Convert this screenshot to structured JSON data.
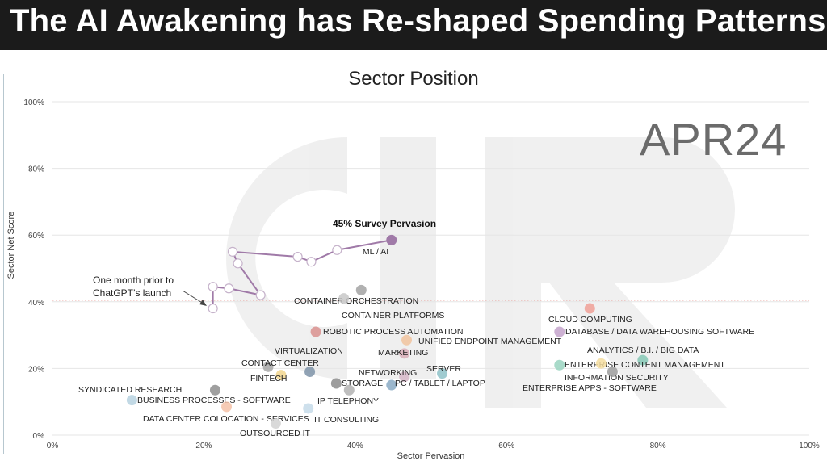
{
  "banner": {
    "title": "The AI Awakening has Re-shaped Spending Patterns"
  },
  "chart_data": {
    "type": "scatter",
    "title": "Sector Position",
    "watermark": "APR24",
    "xlabel": "Sector Pervasion",
    "ylabel": "Sector Net Score",
    "xlim": [
      0,
      100
    ],
    "ylim": [
      0,
      100
    ],
    "x_ticks": [
      "0%",
      "20%",
      "40%",
      "60%",
      "80%",
      "100%"
    ],
    "y_ticks": [
      "0%",
      "20%",
      "40%",
      "60%",
      "80%",
      "100%"
    ],
    "grid": true,
    "reference_line_y": 40.5,
    "points": [
      {
        "label": "ML / AI",
        "x": 44.8,
        "y": 58.5,
        "color": "#a07aa8"
      },
      {
        "label": "CONTAINER ORCHESTRATION",
        "x": 40.8,
        "y": 43.5,
        "color": "#a3a3a3"
      },
      {
        "label": "CONTAINER PLATFORMS",
        "x": 38.5,
        "y": 41.0,
        "color": "#c8c8c8"
      },
      {
        "label": "ROBOTIC PROCESS AUTOMATION",
        "x": 34.8,
        "y": 31.0,
        "color": "#d9908e"
      },
      {
        "label": "UNIFIED ENDPOINT MANAGEMENT",
        "x": 46.8,
        "y": 28.5,
        "color": "#f1c39e"
      },
      {
        "label": "MARKETING",
        "x": 46.5,
        "y": 24.5,
        "color": "#d9aeb8"
      },
      {
        "label": "VIRTUALIZATION",
        "x": 34.0,
        "y": 19.0,
        "color": "#7e93a8"
      },
      {
        "label": "CONTACT CENTER",
        "x": 28.5,
        "y": 20.5,
        "color": "#a8a8a8"
      },
      {
        "label": "FINTECH",
        "x": 30.2,
        "y": 18.0,
        "color": "#f2d68e"
      },
      {
        "label": "NETWORKING",
        "x": 46.5,
        "y": 17.5,
        "color": "#d6b7c8"
      },
      {
        "label": "SERVER",
        "x": 51.5,
        "y": 18.5,
        "color": "#8fc2c8"
      },
      {
        "label": "STORAGE",
        "x": 37.5,
        "y": 15.5,
        "color": "#8c8c8c"
      },
      {
        "label": "PC / TABLET / LAPTOP",
        "x": 44.8,
        "y": 15.0,
        "color": "#8aaac4"
      },
      {
        "label": "SYNDICATED RESEARCH",
        "x": 21.5,
        "y": 13.5,
        "color": "#8e8e8e"
      },
      {
        "label": "BUSINESS PROCESSES - SOFTWARE",
        "x": 10.5,
        "y": 10.5,
        "color": "#b7d2e0"
      },
      {
        "label": "IP TELEPHONY",
        "x": 39.2,
        "y": 13.5,
        "color": "#b3b3b3"
      },
      {
        "label": "DATA CENTER COLOCATION - SERVICES",
        "x": 23.0,
        "y": 8.5,
        "color": "#f5c2a8"
      },
      {
        "label": "IT CONSULTING",
        "x": 33.8,
        "y": 8.0,
        "color": "#c6dbe9"
      },
      {
        "label": "OUTSOURCED IT",
        "x": 29.5,
        "y": 3.5,
        "color": "#d2d2d2"
      },
      {
        "label": "CLOUD COMPUTING",
        "x": 71.0,
        "y": 38.0,
        "color": "#f0a096"
      },
      {
        "label": "DATABASE / DATA WAREHOUSING SOFTWARE",
        "x": 67.0,
        "y": 31.0,
        "color": "#c4a3cb"
      },
      {
        "label": "ANALYTICS / B.I. / BIG DATA",
        "x": 78.0,
        "y": 22.5,
        "color": "#85c8b5"
      },
      {
        "label": "ENTERPRISE CONTENT MANAGEMENT",
        "x": 67.0,
        "y": 21.0,
        "color": "#9ad3c0"
      },
      {
        "label": "INFORMATION SECURITY",
        "x": 72.5,
        "y": 21.5,
        "color": "#f5dd9f"
      },
      {
        "label": "ENTERPRISE APPS - SOFTWARE",
        "x": 74.0,
        "y": 19.0,
        "color": "#9c9c9c"
      }
    ],
    "ml_trail": [
      {
        "x": 21.2,
        "y": 38.0
      },
      {
        "x": 21.2,
        "y": 44.5
      },
      {
        "x": 23.3,
        "y": 44.0
      },
      {
        "x": 27.5,
        "y": 42.0
      },
      {
        "x": 24.5,
        "y": 51.5
      },
      {
        "x": 23.8,
        "y": 55.0
      },
      {
        "x": 32.4,
        "y": 53.5
      },
      {
        "x": 34.2,
        "y": 52.0
      },
      {
        "x": 37.6,
        "y": 55.5
      },
      {
        "x": 44.8,
        "y": 58.5
      }
    ],
    "annotations": {
      "callout": "45% Survey Pervasion",
      "note_line1": "One month prior to",
      "note_line2": "ChatGPT’s launch"
    }
  }
}
